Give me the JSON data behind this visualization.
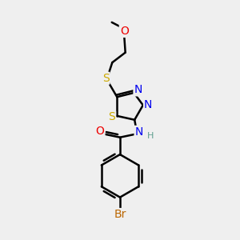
{
  "bg_color": "#efefef",
  "bond_color": "#000000",
  "bond_width": 1.8,
  "atom_colors": {
    "C": "#000000",
    "H": "#5f9f8f",
    "N": "#0000ee",
    "O": "#ee0000",
    "S": "#ccaa00",
    "Br": "#bb6600"
  },
  "font_size": 10,
  "small_font": 8
}
